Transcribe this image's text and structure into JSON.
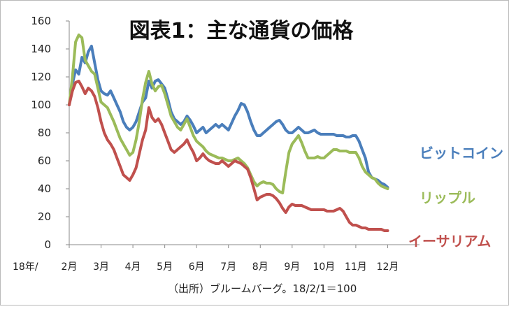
{
  "chart_data": {
    "type": "line",
    "title": "図表1：主な通貨の価格",
    "note": "（出所）ブルームバーグ。18/2/1＝100",
    "x_prefix": "18年/",
    "x_ticks": [
      "2月",
      "3月",
      "4月",
      "5月",
      "6月",
      "7月",
      "8月",
      "9月",
      "10月",
      "11月",
      "12月"
    ],
    "x_range": [
      1,
      12
    ],
    "y_ticks": [
      "0",
      "20",
      "40",
      "60",
      "80",
      "100",
      "120",
      "140",
      "160"
    ],
    "ylim": [
      0,
      160
    ],
    "grid": false,
    "series": [
      {
        "name": "ビットコイン",
        "color": "#4a7ebb",
        "points": [
          [
            1.0,
            100
          ],
          [
            1.1,
            115
          ],
          [
            1.2,
            125
          ],
          [
            1.3,
            122
          ],
          [
            1.4,
            134
          ],
          [
            1.5,
            130
          ],
          [
            1.6,
            138
          ],
          [
            1.7,
            142
          ],
          [
            1.8,
            130
          ],
          [
            1.9,
            118
          ],
          [
            2.0,
            110
          ],
          [
            2.1,
            108
          ],
          [
            2.2,
            107
          ],
          [
            2.3,
            110
          ],
          [
            2.4,
            105
          ],
          [
            2.5,
            100
          ],
          [
            2.6,
            95
          ],
          [
            2.7,
            88
          ],
          [
            2.8,
            84
          ],
          [
            2.9,
            82
          ],
          [
            3.0,
            84
          ],
          [
            3.1,
            88
          ],
          [
            3.2,
            95
          ],
          [
            3.3,
            102
          ],
          [
            3.4,
            105
          ],
          [
            3.5,
            117
          ],
          [
            3.6,
            112
          ],
          [
            3.7,
            117
          ],
          [
            3.8,
            118
          ],
          [
            3.9,
            115
          ],
          [
            4.0,
            112
          ],
          [
            4.1,
            104
          ],
          [
            4.2,
            95
          ],
          [
            4.3,
            90
          ],
          [
            4.4,
            88
          ],
          [
            4.5,
            86
          ],
          [
            4.6,
            88
          ],
          [
            4.7,
            92
          ],
          [
            4.8,
            89
          ],
          [
            4.9,
            85
          ],
          [
            5.0,
            80
          ],
          [
            5.1,
            82
          ],
          [
            5.2,
            84
          ],
          [
            5.3,
            80
          ],
          [
            5.4,
            82
          ],
          [
            5.5,
            84
          ],
          [
            5.6,
            86
          ],
          [
            5.7,
            84
          ],
          [
            5.8,
            86
          ],
          [
            5.9,
            84
          ],
          [
            6.0,
            82
          ],
          [
            6.1,
            87
          ],
          [
            6.2,
            92
          ],
          [
            6.3,
            96
          ],
          [
            6.4,
            101
          ],
          [
            6.5,
            100
          ],
          [
            6.6,
            95
          ],
          [
            6.7,
            88
          ],
          [
            6.8,
            82
          ],
          [
            6.9,
            78
          ],
          [
            7.0,
            78
          ],
          [
            7.1,
            80
          ],
          [
            7.2,
            82
          ],
          [
            7.3,
            84
          ],
          [
            7.4,
            86
          ],
          [
            7.5,
            88
          ],
          [
            7.6,
            89
          ],
          [
            7.7,
            86
          ],
          [
            7.8,
            82
          ],
          [
            7.9,
            80
          ],
          [
            8.0,
            80
          ],
          [
            8.1,
            82
          ],
          [
            8.2,
            84
          ],
          [
            8.3,
            82
          ],
          [
            8.4,
            80
          ],
          [
            8.5,
            80
          ],
          [
            8.6,
            81
          ],
          [
            8.7,
            82
          ],
          [
            8.8,
            80
          ],
          [
            8.9,
            79
          ],
          [
            9.0,
            79
          ],
          [
            9.1,
            79
          ],
          [
            9.2,
            79
          ],
          [
            9.3,
            79
          ],
          [
            9.4,
            78
          ],
          [
            9.5,
            78
          ],
          [
            9.6,
            78
          ],
          [
            9.7,
            77
          ],
          [
            9.8,
            77
          ],
          [
            9.9,
            78
          ],
          [
            10.0,
            78
          ],
          [
            10.1,
            74
          ],
          [
            10.2,
            68
          ],
          [
            10.3,
            62
          ],
          [
            10.4,
            52
          ],
          [
            10.5,
            48
          ],
          [
            10.6,
            47
          ],
          [
            10.7,
            46
          ],
          [
            10.8,
            44
          ],
          [
            10.9,
            43
          ],
          [
            11.0,
            41
          ]
        ]
      },
      {
        "name": "リップル",
        "color": "#9bbb59",
        "points": [
          [
            1.0,
            100
          ],
          [
            1.1,
            120
          ],
          [
            1.2,
            145
          ],
          [
            1.3,
            150
          ],
          [
            1.4,
            148
          ],
          [
            1.5,
            132
          ],
          [
            1.6,
            128
          ],
          [
            1.7,
            124
          ],
          [
            1.8,
            122
          ],
          [
            1.9,
            112
          ],
          [
            2.0,
            102
          ],
          [
            2.1,
            100
          ],
          [
            2.2,
            98
          ],
          [
            2.3,
            93
          ],
          [
            2.4,
            88
          ],
          [
            2.5,
            82
          ],
          [
            2.6,
            76
          ],
          [
            2.7,
            72
          ],
          [
            2.8,
            68
          ],
          [
            2.9,
            64
          ],
          [
            3.0,
            66
          ],
          [
            3.1,
            75
          ],
          [
            3.2,
            88
          ],
          [
            3.3,
            104
          ],
          [
            3.4,
            116
          ],
          [
            3.5,
            124
          ],
          [
            3.6,
            115
          ],
          [
            3.7,
            110
          ],
          [
            3.8,
            113
          ],
          [
            3.9,
            114
          ],
          [
            4.0,
            108
          ],
          [
            4.1,
            100
          ],
          [
            4.2,
            92
          ],
          [
            4.3,
            88
          ],
          [
            4.4,
            84
          ],
          [
            4.5,
            82
          ],
          [
            4.6,
            86
          ],
          [
            4.7,
            90
          ],
          [
            4.8,
            84
          ],
          [
            4.9,
            78
          ],
          [
            5.0,
            74
          ],
          [
            5.1,
            72
          ],
          [
            5.2,
            70
          ],
          [
            5.3,
            67
          ],
          [
            5.4,
            65
          ],
          [
            5.5,
            64
          ],
          [
            5.6,
            63
          ],
          [
            5.7,
            62
          ],
          [
            5.8,
            62
          ],
          [
            5.9,
            61
          ],
          [
            6.0,
            60
          ],
          [
            6.1,
            60
          ],
          [
            6.2,
            61
          ],
          [
            6.3,
            62
          ],
          [
            6.4,
            60
          ],
          [
            6.5,
            58
          ],
          [
            6.6,
            55
          ],
          [
            6.7,
            50
          ],
          [
            6.8,
            45
          ],
          [
            6.9,
            42
          ],
          [
            7.0,
            44
          ],
          [
            7.1,
            45
          ],
          [
            7.2,
            44
          ],
          [
            7.3,
            44
          ],
          [
            7.4,
            43
          ],
          [
            7.5,
            40
          ],
          [
            7.6,
            38
          ],
          [
            7.7,
            37
          ],
          [
            7.8,
            52
          ],
          [
            7.9,
            66
          ],
          [
            8.0,
            72
          ],
          [
            8.1,
            75
          ],
          [
            8.2,
            78
          ],
          [
            8.3,
            73
          ],
          [
            8.4,
            67
          ],
          [
            8.5,
            62
          ],
          [
            8.6,
            62
          ],
          [
            8.7,
            62
          ],
          [
            8.8,
            63
          ],
          [
            8.9,
            62
          ],
          [
            9.0,
            62
          ],
          [
            9.1,
            64
          ],
          [
            9.2,
            66
          ],
          [
            9.3,
            68
          ],
          [
            9.4,
            68
          ],
          [
            9.5,
            67
          ],
          [
            9.6,
            67
          ],
          [
            9.7,
            67
          ],
          [
            9.8,
            66
          ],
          [
            9.9,
            66
          ],
          [
            10.0,
            66
          ],
          [
            10.1,
            62
          ],
          [
            10.2,
            56
          ],
          [
            10.3,
            52
          ],
          [
            10.4,
            50
          ],
          [
            10.5,
            48
          ],
          [
            10.6,
            47
          ],
          [
            10.7,
            44
          ],
          [
            10.8,
            42
          ],
          [
            10.9,
            41
          ],
          [
            11.0,
            40
          ]
        ]
      },
      {
        "name": "イーサリアム",
        "color": "#c0504d",
        "points": [
          [
            1.0,
            100
          ],
          [
            1.1,
            110
          ],
          [
            1.2,
            116
          ],
          [
            1.3,
            117
          ],
          [
            1.4,
            113
          ],
          [
            1.5,
            108
          ],
          [
            1.6,
            112
          ],
          [
            1.7,
            110
          ],
          [
            1.8,
            106
          ],
          [
            1.9,
            98
          ],
          [
            2.0,
            88
          ],
          [
            2.1,
            80
          ],
          [
            2.2,
            75
          ],
          [
            2.3,
            72
          ],
          [
            2.4,
            68
          ],
          [
            2.5,
            62
          ],
          [
            2.6,
            56
          ],
          [
            2.7,
            50
          ],
          [
            2.8,
            48
          ],
          [
            2.9,
            46
          ],
          [
            3.0,
            50
          ],
          [
            3.1,
            55
          ],
          [
            3.2,
            65
          ],
          [
            3.3,
            75
          ],
          [
            3.4,
            82
          ],
          [
            3.5,
            98
          ],
          [
            3.6,
            91
          ],
          [
            3.7,
            88
          ],
          [
            3.8,
            90
          ],
          [
            3.9,
            86
          ],
          [
            4.0,
            80
          ],
          [
            4.1,
            74
          ],
          [
            4.2,
            68
          ],
          [
            4.3,
            66
          ],
          [
            4.4,
            68
          ],
          [
            4.5,
            70
          ],
          [
            4.6,
            72
          ],
          [
            4.7,
            75
          ],
          [
            4.8,
            70
          ],
          [
            4.9,
            66
          ],
          [
            5.0,
            60
          ],
          [
            5.1,
            62
          ],
          [
            5.2,
            65
          ],
          [
            5.3,
            62
          ],
          [
            5.4,
            60
          ],
          [
            5.5,
            59
          ],
          [
            5.6,
            58
          ],
          [
            5.7,
            58
          ],
          [
            5.8,
            60
          ],
          [
            5.9,
            58
          ],
          [
            6.0,
            56
          ],
          [
            6.1,
            58
          ],
          [
            6.2,
            60
          ],
          [
            6.3,
            59
          ],
          [
            6.4,
            58
          ],
          [
            6.5,
            56
          ],
          [
            6.6,
            54
          ],
          [
            6.7,
            48
          ],
          [
            6.8,
            40
          ],
          [
            6.9,
            32
          ],
          [
            7.0,
            34
          ],
          [
            7.1,
            35
          ],
          [
            7.2,
            36
          ],
          [
            7.3,
            36
          ],
          [
            7.4,
            35
          ],
          [
            7.5,
            33
          ],
          [
            7.6,
            30
          ],
          [
            7.7,
            26
          ],
          [
            7.8,
            23
          ],
          [
            7.9,
            27
          ],
          [
            8.0,
            29
          ],
          [
            8.1,
            28
          ],
          [
            8.2,
            28
          ],
          [
            8.3,
            28
          ],
          [
            8.4,
            27
          ],
          [
            8.5,
            26
          ],
          [
            8.6,
            25
          ],
          [
            8.7,
            25
          ],
          [
            8.8,
            25
          ],
          [
            8.9,
            25
          ],
          [
            9.0,
            25
          ],
          [
            9.1,
            24
          ],
          [
            9.2,
            24
          ],
          [
            9.3,
            24
          ],
          [
            9.4,
            25
          ],
          [
            9.5,
            26
          ],
          [
            9.6,
            24
          ],
          [
            9.7,
            20
          ],
          [
            9.8,
            16
          ],
          [
            9.9,
            14
          ],
          [
            10.0,
            14
          ],
          [
            10.1,
            13
          ],
          [
            10.2,
            12
          ],
          [
            10.3,
            12
          ],
          [
            10.4,
            11
          ],
          [
            10.5,
            11
          ],
          [
            10.6,
            11
          ],
          [
            10.7,
            11
          ],
          [
            10.8,
            11
          ],
          [
            10.9,
            10
          ],
          [
            11.0,
            10
          ]
        ]
      }
    ]
  }
}
